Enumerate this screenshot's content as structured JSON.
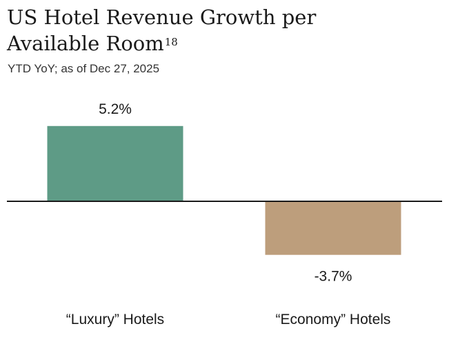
{
  "header": {
    "title_line1": "US Hotel Revenue Growth per",
    "title_line2": "Available Room",
    "footnote": "18",
    "subtitle": "YTD YoY; as of Dec 27, 2025"
  },
  "chart_data": {
    "type": "bar",
    "categories": [
      "“Luxury” Hotels",
      "“Economy” Hotels"
    ],
    "values": [
      5.2,
      -3.7
    ],
    "value_labels": [
      "5.2%",
      "-3.7%"
    ],
    "colors": [
      "#5e9b86",
      "#bd9e7c"
    ],
    "baseline_color": "#1a1a1a",
    "title": "US Hotel Revenue Growth per Available Room",
    "subtitle": "YTD YoY; as of Dec 27, 2025",
    "xlabel": "",
    "ylabel": "",
    "grid": false,
    "legend": "none"
  }
}
